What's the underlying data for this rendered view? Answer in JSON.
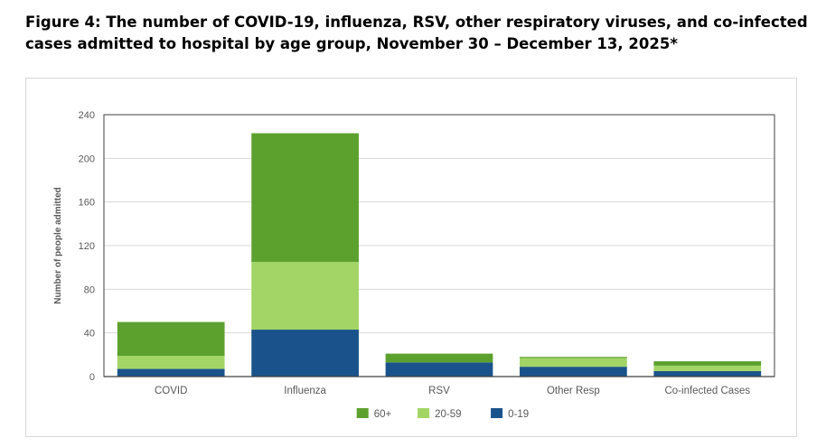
{
  "figure": {
    "title_bold": "Figure 4: The number of COVID-19, influenza, RSV, other respiratory viruses, and co-infected cases admitted to hospital by age group,",
    "title_rest": " November 30 – December 13, 2025*"
  },
  "chart_data": {
    "type": "bar",
    "stacked": true,
    "title": "",
    "xlabel": "",
    "ylabel": "Number of people admitted",
    "ylim": [
      0,
      240
    ],
    "yticks": [
      0,
      40,
      80,
      120,
      160,
      200,
      240
    ],
    "grid": true,
    "categories": [
      "COVID",
      "Influenza",
      "RSV",
      "Other Resp",
      "Co-infected Cases"
    ],
    "series": [
      {
        "name": "0-19",
        "color": "#1a538b",
        "values": [
          7,
          43,
          13,
          9,
          5
        ]
      },
      {
        "name": "20-59",
        "color": "#a2d566",
        "values": [
          12,
          62,
          0,
          8,
          5
        ]
      },
      {
        "name": "60+",
        "color": "#5ca12e",
        "values": [
          31,
          118,
          8,
          1,
          4
        ]
      }
    ],
    "legend_order": [
      "60+",
      "20-59",
      "0-19"
    ],
    "legend_position": "bottom-center"
  }
}
